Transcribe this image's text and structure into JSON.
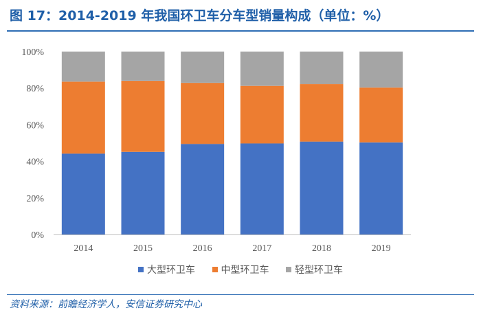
{
  "header": {
    "title": "图 17：2014-2019 年我国环卫车分车型销量构成（单位：%）"
  },
  "source": {
    "text": "资料来源：前瞻经济学人，安信证券研究中心"
  },
  "colors": {
    "title": "#1f5fa8",
    "rule": "#2e6db4",
    "axis": "#bfbfbf",
    "tick_text": "#595959"
  },
  "chart_data": {
    "type": "bar",
    "stacked": true,
    "categories": [
      "2014",
      "2015",
      "2016",
      "2017",
      "2018",
      "2019"
    ],
    "series": [
      {
        "name": "大型环卫车",
        "color": "#4472c4",
        "values": [
          44.2,
          45.2,
          49.5,
          49.8,
          50.8,
          50.3
        ]
      },
      {
        "name": "中型环卫车",
        "color": "#ed7d31",
        "values": [
          39.4,
          38.7,
          33.3,
          31.5,
          31.5,
          30.0
        ]
      },
      {
        "name": "轻型环卫车",
        "color": "#a5a5a5",
        "values": [
          16.4,
          16.1,
          17.2,
          18.7,
          17.7,
          19.7
        ]
      }
    ],
    "y_ticks": [
      0,
      20,
      40,
      60,
      80,
      100
    ],
    "y_tick_labels": [
      "0%",
      "20%",
      "40%",
      "60%",
      "80%",
      "100%"
    ],
    "ylim": [
      0,
      100
    ],
    "xlabel": "",
    "ylabel": "",
    "legend_position": "bottom",
    "grid": false
  }
}
